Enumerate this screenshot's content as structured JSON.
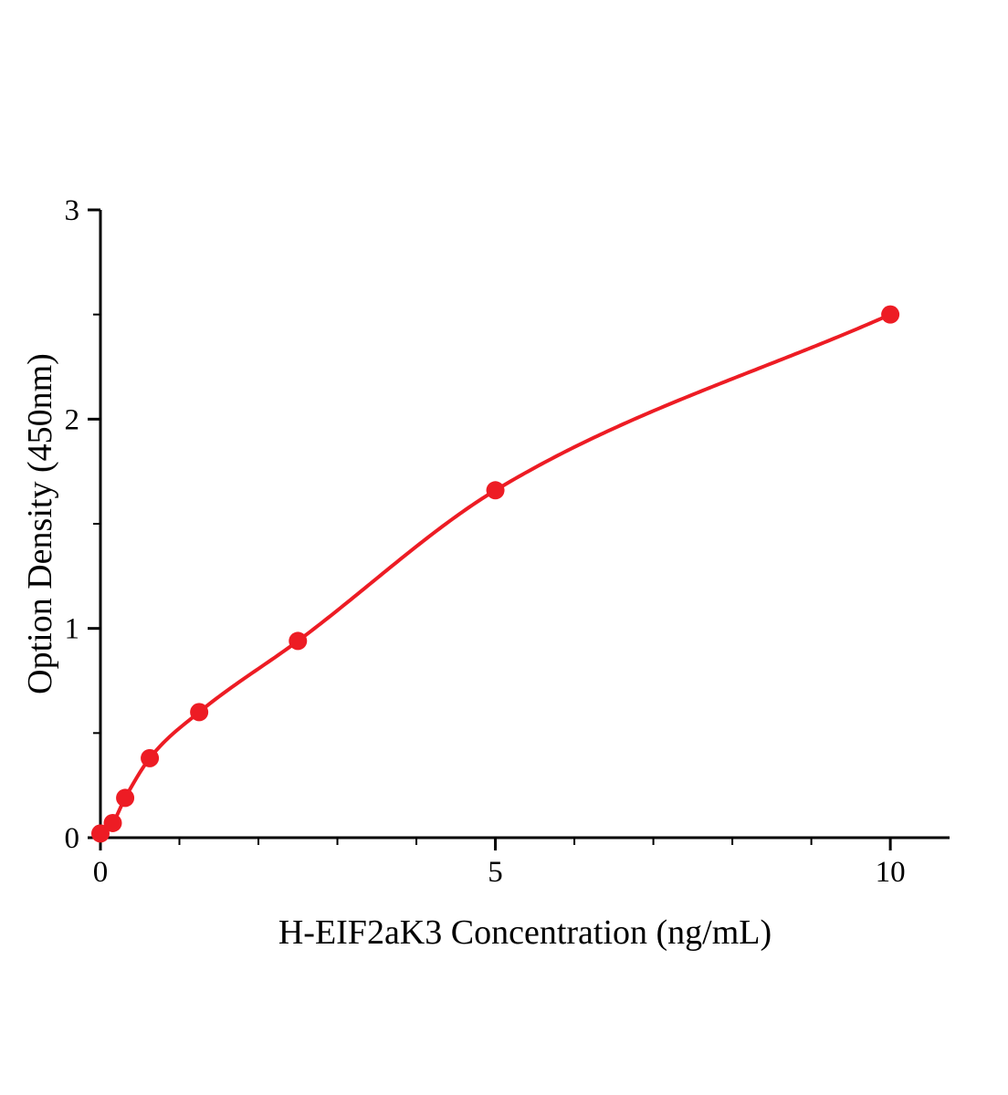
{
  "chart_data": {
    "type": "scatter",
    "title": "",
    "xlabel": "H-EIF2aK3 Concentration (ng/mL)",
    "ylabel": "Option Density (450nm)",
    "x": [
      0,
      0.156,
      0.313,
      0.625,
      1.25,
      2.5,
      5,
      10
    ],
    "y": [
      0.02,
      0.07,
      0.19,
      0.38,
      0.6,
      0.94,
      1.66,
      2.5
    ],
    "fit": "smooth saturating curve through all points",
    "xlim": [
      0,
      10.75
    ],
    "ylim": [
      0,
      3
    ],
    "x_ticks": [
      {
        "value": 0,
        "label": "0"
      },
      {
        "value": 5,
        "label": "5"
      },
      {
        "value": 10,
        "label": "10"
      }
    ],
    "y_ticks": [
      {
        "value": 0,
        "label": "0"
      },
      {
        "value": 1,
        "label": "1"
      },
      {
        "value": 2,
        "label": "2"
      },
      {
        "value": 3,
        "label": "3"
      }
    ],
    "x_minor_step": 1,
    "y_minor_step": 0.5,
    "grid": false,
    "legend": null,
    "colors": {
      "curve": "#ed1c24",
      "marker": "#ed1c24",
      "axis": "#000000",
      "background": "#ffffff"
    }
  }
}
